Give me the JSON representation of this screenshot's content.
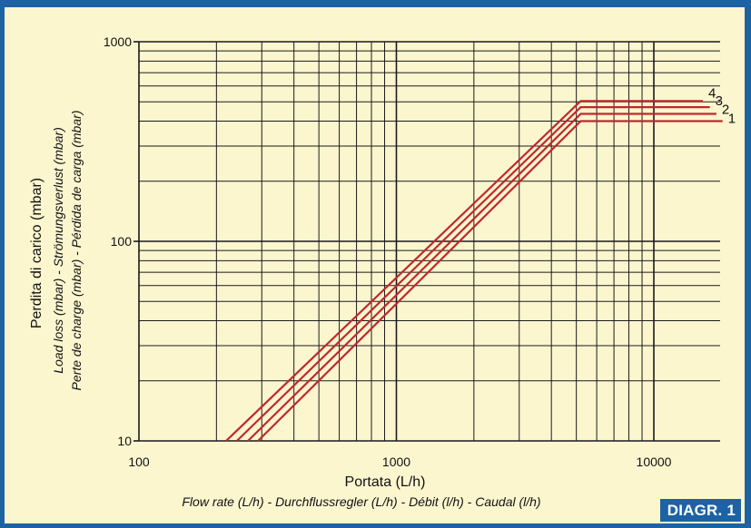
{
  "figure_label": "DIAGR. 1",
  "colors": {
    "background": "#fcf6cf",
    "frame": "#1d62a3",
    "grid": "#1a1a1a",
    "curve": "#c0282d"
  },
  "chart_data": {
    "type": "line",
    "x_scale": "log",
    "y_scale": "log",
    "xlim": [
      100,
      20000
    ],
    "ylim": [
      10,
      1000
    ],
    "x_tick_labels": [
      "100",
      "1000",
      "10000"
    ],
    "y_tick_labels": [
      "1000",
      "100",
      "10"
    ],
    "xlabel": "Portata (L/h)",
    "xlabel_sub": "Flow rate (L/h) - Durchflussregler (L/h) - Débit (l/h) - Caudal (l/h)",
    "ylabel": "Perdita di carico (mbar)",
    "ylabel_sub1": "Load loss (mbar) - Strömungsverlust (mbar)",
    "ylabel_sub2": "Perte de charge (mbar) - Pérdida de carga (mbar)",
    "grid": true,
    "series": [
      {
        "name": "1",
        "x": [
          290,
          5200,
          18500
        ],
        "y": [
          10,
          400,
          400
        ]
      },
      {
        "name": "2",
        "x": [
          265,
          5200,
          17500
        ],
        "y": [
          10,
          435,
          435
        ]
      },
      {
        "name": "3",
        "x": [
          240,
          5200,
          16500
        ],
        "y": [
          10,
          470,
          470
        ]
      },
      {
        "name": "4",
        "x": [
          218,
          5200,
          15500
        ],
        "y": [
          10,
          505,
          505
        ]
      }
    ]
  }
}
